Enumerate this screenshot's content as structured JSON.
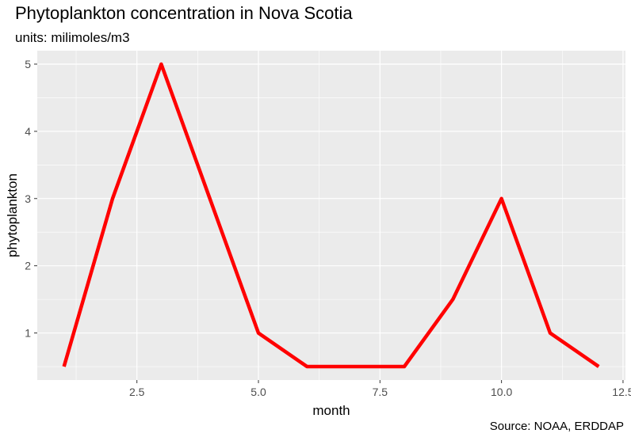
{
  "chart_data": {
    "type": "line",
    "title": "Phytoplankton concentration in Nova Scotia",
    "subtitle": "units: milimoles/m3",
    "caption": "Source: NOAA, ERDDAP",
    "xlabel": "month",
    "ylabel": "phytoplankton",
    "x": [
      1,
      2,
      3,
      4,
      5,
      6,
      7,
      8,
      9,
      10,
      11,
      12
    ],
    "series": [
      {
        "values": [
          0.5,
          3,
          5,
          3,
          1,
          0.5,
          0.5,
          0.5,
          1.5,
          3,
          1,
          0.5
        ],
        "color": "#ff0000"
      }
    ],
    "xlim": [
      0.45,
      12.55
    ],
    "ylim": [
      0.3,
      5.2
    ],
    "xticks": [
      2.5,
      5.0,
      7.5,
      10.0,
      12.5
    ],
    "xtick_labels": [
      "2.5",
      "5.0",
      "7.5",
      "10.0",
      "12.5"
    ],
    "yticks": [
      1,
      2,
      3,
      4,
      5
    ],
    "ytick_labels": [
      "1",
      "2",
      "3",
      "4",
      "5"
    ],
    "grid": true,
    "panel_background": "#ebebeb",
    "grid_color": "#ffffff"
  }
}
